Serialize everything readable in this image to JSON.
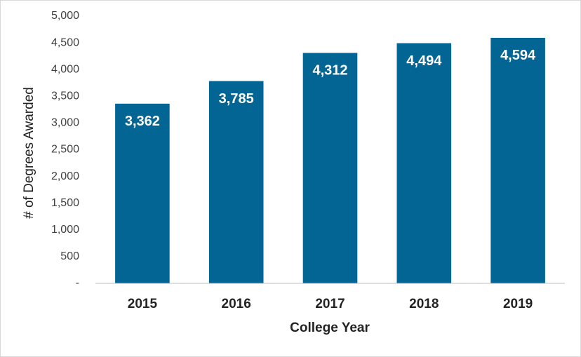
{
  "chart_data": {
    "type": "bar",
    "x_label": "College Year",
    "y_label": "# of Degrees Awarded",
    "categories": [
      "2015",
      "2016",
      "2017",
      "2018",
      "2019"
    ],
    "values": [
      3362,
      3785,
      4312,
      4494,
      4594
    ],
    "value_labels": [
      "3,362",
      "3,785",
      "4,312",
      "4,494",
      "4,594"
    ],
    "color": "#036593",
    "ylim": [
      0,
      5000
    ],
    "yticks": [
      {
        "value": 0,
        "label": "-"
      },
      500,
      {
        "value": 1000,
        "label": "1,000"
      },
      {
        "value": 1500,
        "label": "1,500"
      },
      {
        "value": 2000,
        "label": "2,000"
      },
      {
        "value": 2500,
        "label": "2,500"
      },
      {
        "value": 3000,
        "label": "3,000"
      },
      {
        "value": 3500,
        "label": "3,500"
      },
      {
        "value": 4000,
        "label": "4,000"
      },
      {
        "value": 4500,
        "label": "4,500"
      },
      {
        "value": 5000,
        "label": "5,000"
      }
    ],
    "grid": false
  }
}
